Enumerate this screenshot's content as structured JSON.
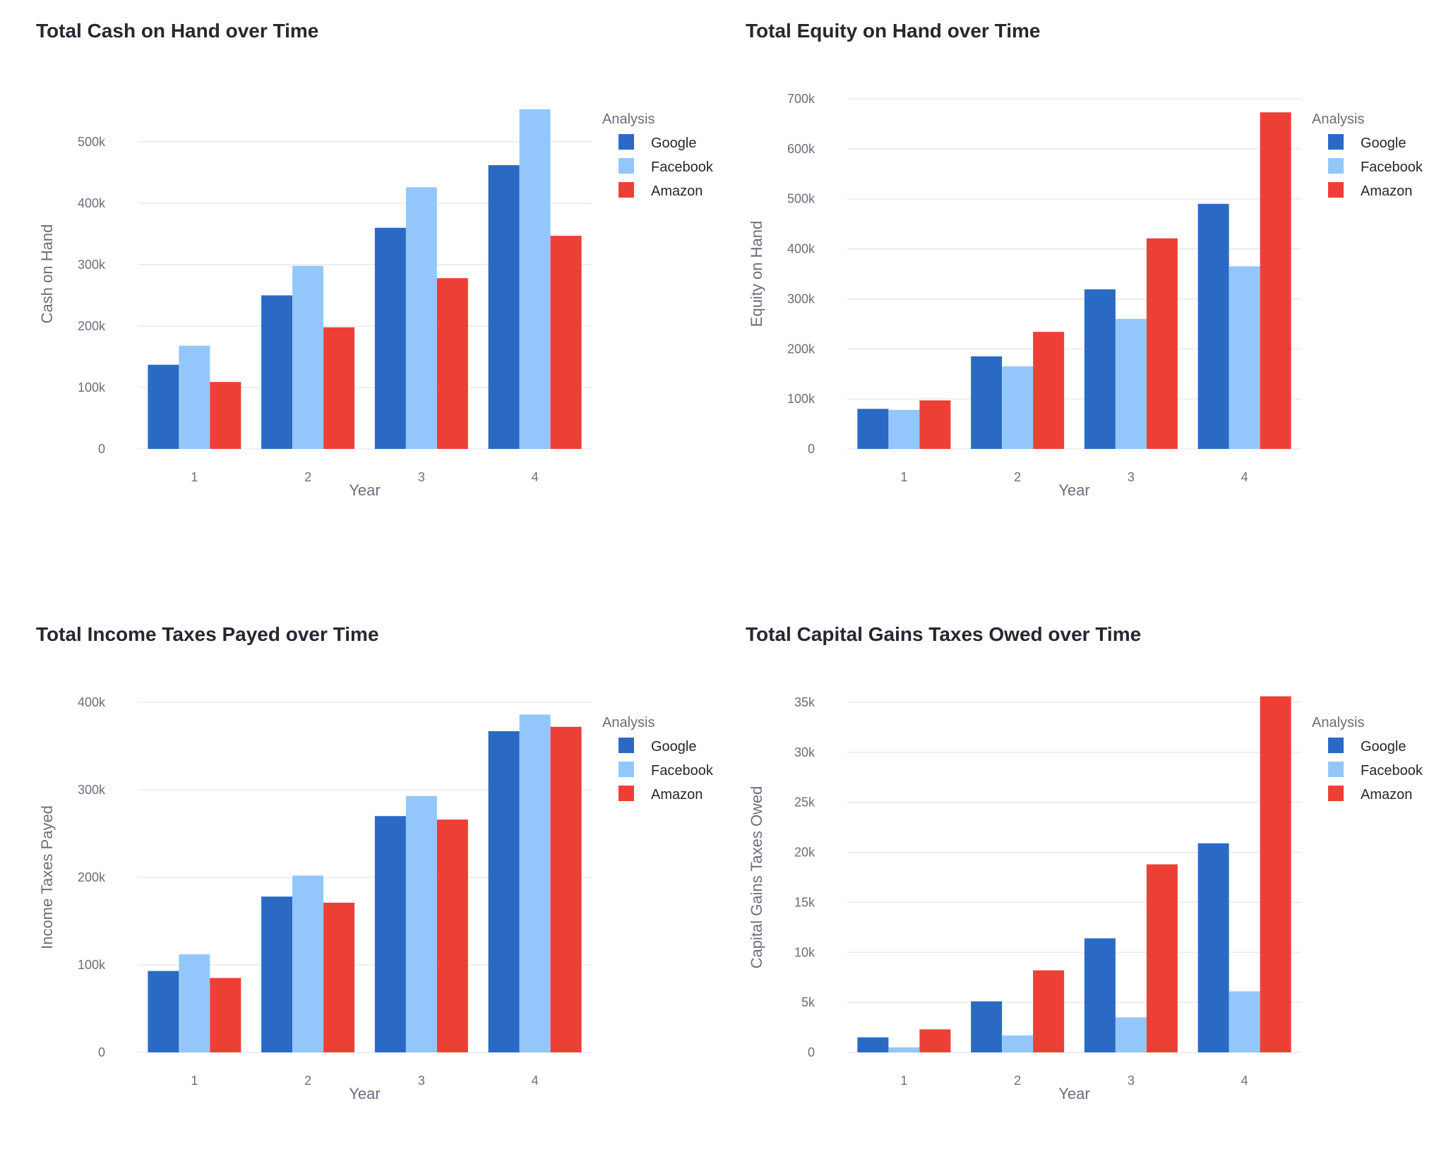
{
  "chart_data": [
    {
      "type": "bar",
      "title": "Total Cash on Hand over Time",
      "xlabel": "Year",
      "ylabel": "Cash on Hand",
      "categories": [
        "1",
        "2",
        "3",
        "4"
      ],
      "ylim": [
        0,
        570000
      ],
      "yticks": [
        0,
        100000,
        200000,
        300000,
        400000,
        500000
      ],
      "ytick_labels": [
        "0",
        "100k",
        "200k",
        "300k",
        "400k",
        "500k"
      ],
      "legend_title": "Analysis",
      "legend_position": "top-right",
      "series": [
        {
          "name": "Google",
          "color": "#2a6ac4",
          "values": [
            137000,
            250000,
            360000,
            462000
          ]
        },
        {
          "name": "Facebook",
          "color": "#93c7fb",
          "values": [
            168000,
            298000,
            426000,
            553000
          ]
        },
        {
          "name": "Amazon",
          "color": "#ec4037",
          "values": [
            109000,
            198000,
            278000,
            347000
          ]
        }
      ]
    },
    {
      "type": "bar",
      "title": "Total Equity on Hand over Time",
      "xlabel": "Year",
      "ylabel": "Equity on Hand",
      "categories": [
        "1",
        "2",
        "3",
        "4"
      ],
      "ylim": [
        0,
        700000
      ],
      "yticks": [
        0,
        100000,
        200000,
        300000,
        400000,
        500000,
        600000,
        700000
      ],
      "ytick_labels": [
        "0",
        "100k",
        "200k",
        "300k",
        "400k",
        "500k",
        "600k",
        "700k"
      ],
      "legend_title": "Analysis",
      "legend_position": "top-right",
      "series": [
        {
          "name": "Google",
          "color": "#2a6ac4",
          "values": [
            80000,
            185000,
            319000,
            490000
          ]
        },
        {
          "name": "Facebook",
          "color": "#93c7fb",
          "values": [
            78000,
            165000,
            260000,
            365000
          ]
        },
        {
          "name": "Amazon",
          "color": "#ec4037",
          "values": [
            97000,
            234000,
            421000,
            673000
          ]
        }
      ]
    },
    {
      "type": "bar",
      "title": "Total Income Taxes Payed over Time",
      "xlabel": "Year",
      "ylabel": "Income Taxes Payed",
      "categories": [
        "1",
        "2",
        "3",
        "4"
      ],
      "ylim": [
        0,
        400000
      ],
      "yticks": [
        0,
        100000,
        200000,
        300000,
        400000
      ],
      "ytick_labels": [
        "0",
        "100k",
        "200k",
        "300k",
        "400k"
      ],
      "legend_title": "Analysis",
      "legend_position": "top-right",
      "series": [
        {
          "name": "Google",
          "color": "#2a6ac4",
          "values": [
            93000,
            178000,
            270000,
            367000
          ]
        },
        {
          "name": "Facebook",
          "color": "#93c7fb",
          "values": [
            112000,
            202000,
            293000,
            386000
          ]
        },
        {
          "name": "Amazon",
          "color": "#ec4037",
          "values": [
            85000,
            171000,
            266000,
            372000
          ]
        }
      ]
    },
    {
      "type": "bar",
      "title": "Total Capital Gains Taxes Owed over Time",
      "xlabel": "Year",
      "ylabel": "Capital Gains Taxes Owed",
      "categories": [
        "1",
        "2",
        "3",
        "4"
      ],
      "ylim": [
        0,
        35000
      ],
      "yticks": [
        0,
        5000,
        10000,
        15000,
        20000,
        25000,
        30000,
        35000
      ],
      "ytick_labels": [
        "0",
        "5k",
        "10k",
        "15k",
        "20k",
        "25k",
        "30k",
        "35k"
      ],
      "legend_title": "Analysis",
      "legend_position": "top-right",
      "series": [
        {
          "name": "Google",
          "color": "#2a6ac4",
          "values": [
            1500,
            5100,
            11400,
            20900
          ]
        },
        {
          "name": "Facebook",
          "color": "#93c7fb",
          "values": [
            500,
            1700,
            3500,
            6100
          ]
        },
        {
          "name": "Amazon",
          "color": "#ec4037",
          "values": [
            2300,
            8200,
            18800,
            35600
          ]
        }
      ]
    }
  ]
}
